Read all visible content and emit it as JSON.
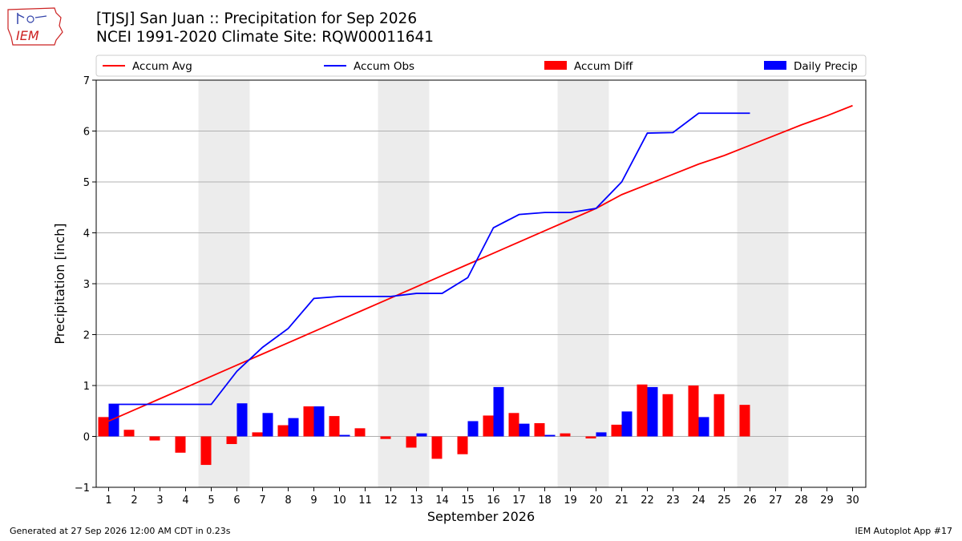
{
  "header": {
    "title_line1": "[TJSJ] San Juan :: Precipitation for Sep 2026",
    "title_line2": "NCEI 1991-2020 Climate Site: RQW00011641",
    "logo_text": "IEM"
  },
  "footer": {
    "generated": "Generated at 27 Sep 2026 12:00 AM CDT in 0.23s",
    "app": "IEM Autoplot App #17"
  },
  "colors": {
    "avg": "#ff0000",
    "obs": "#0000ff",
    "diff": "#ff0000",
    "daily": "#0000ff",
    "weekend_band": "#ececec",
    "grid": "#b0b0b0"
  },
  "chart_data": {
    "type": "bar",
    "xlabel": "September 2026",
    "ylabel": "Precipitation [inch]",
    "ylim": [
      -1,
      7
    ],
    "yticks": [
      -1,
      0,
      1,
      2,
      3,
      4,
      5,
      6,
      7
    ],
    "days": [
      1,
      2,
      3,
      4,
      5,
      6,
      7,
      8,
      9,
      10,
      11,
      12,
      13,
      14,
      15,
      16,
      17,
      18,
      19,
      20,
      21,
      22,
      23,
      24,
      25,
      26,
      27,
      28,
      29,
      30
    ],
    "grid": "horizontal",
    "legend_position": "top",
    "weekend_bands": [
      [
        5,
        6
      ],
      [
        12,
        13
      ],
      [
        19,
        20
      ],
      [
        26,
        27
      ]
    ],
    "series": [
      {
        "name": "Accum Avg",
        "kind": "line",
        "values": [
          0.3,
          0.52,
          0.74,
          0.96,
          1.18,
          1.4,
          1.62,
          1.84,
          2.06,
          2.28,
          2.5,
          2.72,
          2.94,
          3.16,
          3.38,
          3.6,
          3.82,
          4.04,
          4.26,
          4.48,
          4.75,
          4.95,
          5.15,
          5.35,
          5.52,
          5.72,
          5.92,
          6.12,
          6.3,
          6.5
        ]
      },
      {
        "name": "Accum Obs",
        "kind": "line",
        "values": [
          0.63,
          0.63,
          0.63,
          0.63,
          0.63,
          1.28,
          1.75,
          2.12,
          2.71,
          2.75,
          2.75,
          2.75,
          2.81,
          2.81,
          3.12,
          4.1,
          4.36,
          4.4,
          4.4,
          4.48,
          5.0,
          5.96,
          5.97,
          6.35,
          6.35,
          6.35
        ]
      },
      {
        "name": "Accum Diff",
        "kind": "bar",
        "values": [
          0.38,
          0.13,
          -0.08,
          -0.32,
          -0.56,
          -0.15,
          0.08,
          0.22,
          0.59,
          0.4,
          0.16,
          -0.05,
          -0.22,
          -0.44,
          -0.35,
          0.41,
          0.46,
          0.26,
          0.06,
          -0.04,
          0.23,
          1.02,
          0.83,
          1.0,
          0.83,
          0.62
        ]
      },
      {
        "name": "Daily Precip",
        "kind": "bar",
        "values": [
          0.63,
          0,
          0,
          0,
          0,
          0.65,
          0.46,
          0.36,
          0.59,
          0.03,
          0,
          0,
          0.06,
          0,
          0.3,
          0.97,
          0.25,
          0.03,
          0,
          0.08,
          0.49,
          0.97,
          0,
          0.38,
          0,
          0
        ]
      }
    ]
  }
}
